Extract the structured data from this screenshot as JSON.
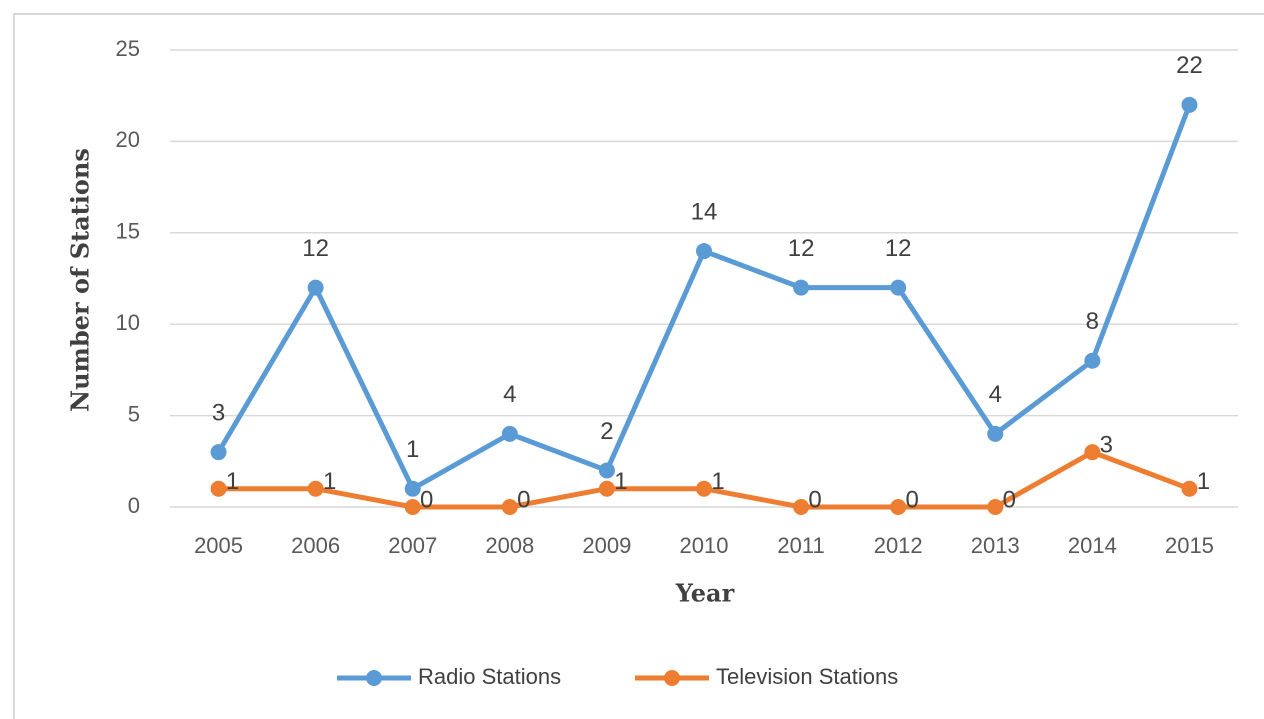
{
  "chart_data": {
    "type": "line",
    "x_label": "Year",
    "y_label": "Number of Stations",
    "categories": [
      "2005",
      "2006",
      "2007",
      "2008",
      "2009",
      "2010",
      "2011",
      "2012",
      "2013",
      "2014",
      "2015"
    ],
    "series": [
      {
        "name": "Radio Stations",
        "color": "#5b9bd5",
        "values": [
          3,
          12,
          1,
          4,
          2,
          14,
          12,
          12,
          4,
          8,
          22
        ]
      },
      {
        "name": "Television Stations",
        "color": "#ed7d31",
        "values": [
          1,
          1,
          0,
          0,
          1,
          1,
          0,
          0,
          0,
          3,
          1
        ]
      }
    ],
    "ylim": [
      0,
      25
    ],
    "yticks": [
      0,
      5,
      10,
      15,
      20,
      25
    ],
    "grid": true,
    "legend": "bottom"
  }
}
